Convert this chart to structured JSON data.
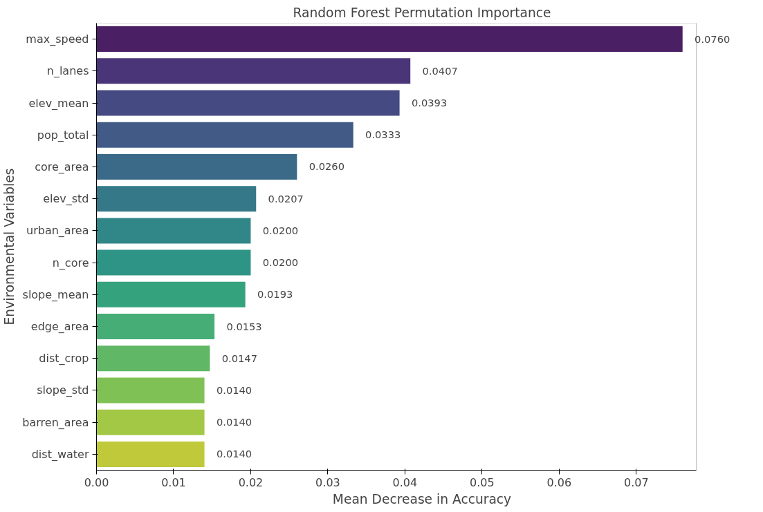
{
  "chart_data": {
    "type": "bar",
    "orientation": "horizontal",
    "title": "Random Forest Permutation Importance",
    "xlabel": "Mean Decrease in Accuracy",
    "ylabel": "Environmental Variables",
    "categories": [
      "max_speed",
      "n_lanes",
      "elev_mean",
      "pop_total",
      "core_area",
      "elev_std",
      "urban_area",
      "n_core",
      "slope_mean",
      "edge_area",
      "dist_crop",
      "slope_std",
      "barren_area",
      "dist_water"
    ],
    "values": [
      0.076,
      0.0407,
      0.0393,
      0.0333,
      0.026,
      0.0207,
      0.02,
      0.02,
      0.0193,
      0.0153,
      0.0147,
      0.014,
      0.014,
      0.014
    ],
    "value_labels": [
      "0.0760",
      "0.0407",
      "0.0393",
      "0.0333",
      "0.0260",
      "0.0207",
      "0.0200",
      "0.0200",
      "0.0193",
      "0.0153",
      "0.0147",
      "0.0140",
      "0.0140",
      "0.0140"
    ],
    "colors": [
      "#4b1f64",
      "#4a3579",
      "#464a82",
      "#415a86",
      "#3a6a88",
      "#357888",
      "#318688",
      "#2e9485",
      "#35a27e",
      "#45ad75",
      "#60b866",
      "#80c155",
      "#a2c845",
      "#c0c93a"
    ],
    "xlim": [
      0,
      0.0778
    ],
    "xticks": [
      {
        "value": 0,
        "label": "0.00"
      },
      {
        "value": 0.01,
        "label": "0.01"
      },
      {
        "value": 0.02,
        "label": "0.02"
      },
      {
        "value": 0.03,
        "label": "0.03"
      },
      {
        "value": 0.04,
        "label": "0.04"
      },
      {
        "value": 0.05,
        "label": "0.05"
      },
      {
        "value": 0.06,
        "label": "0.06"
      },
      {
        "value": 0.07,
        "label": "0.07"
      }
    ],
    "grid": false
  }
}
